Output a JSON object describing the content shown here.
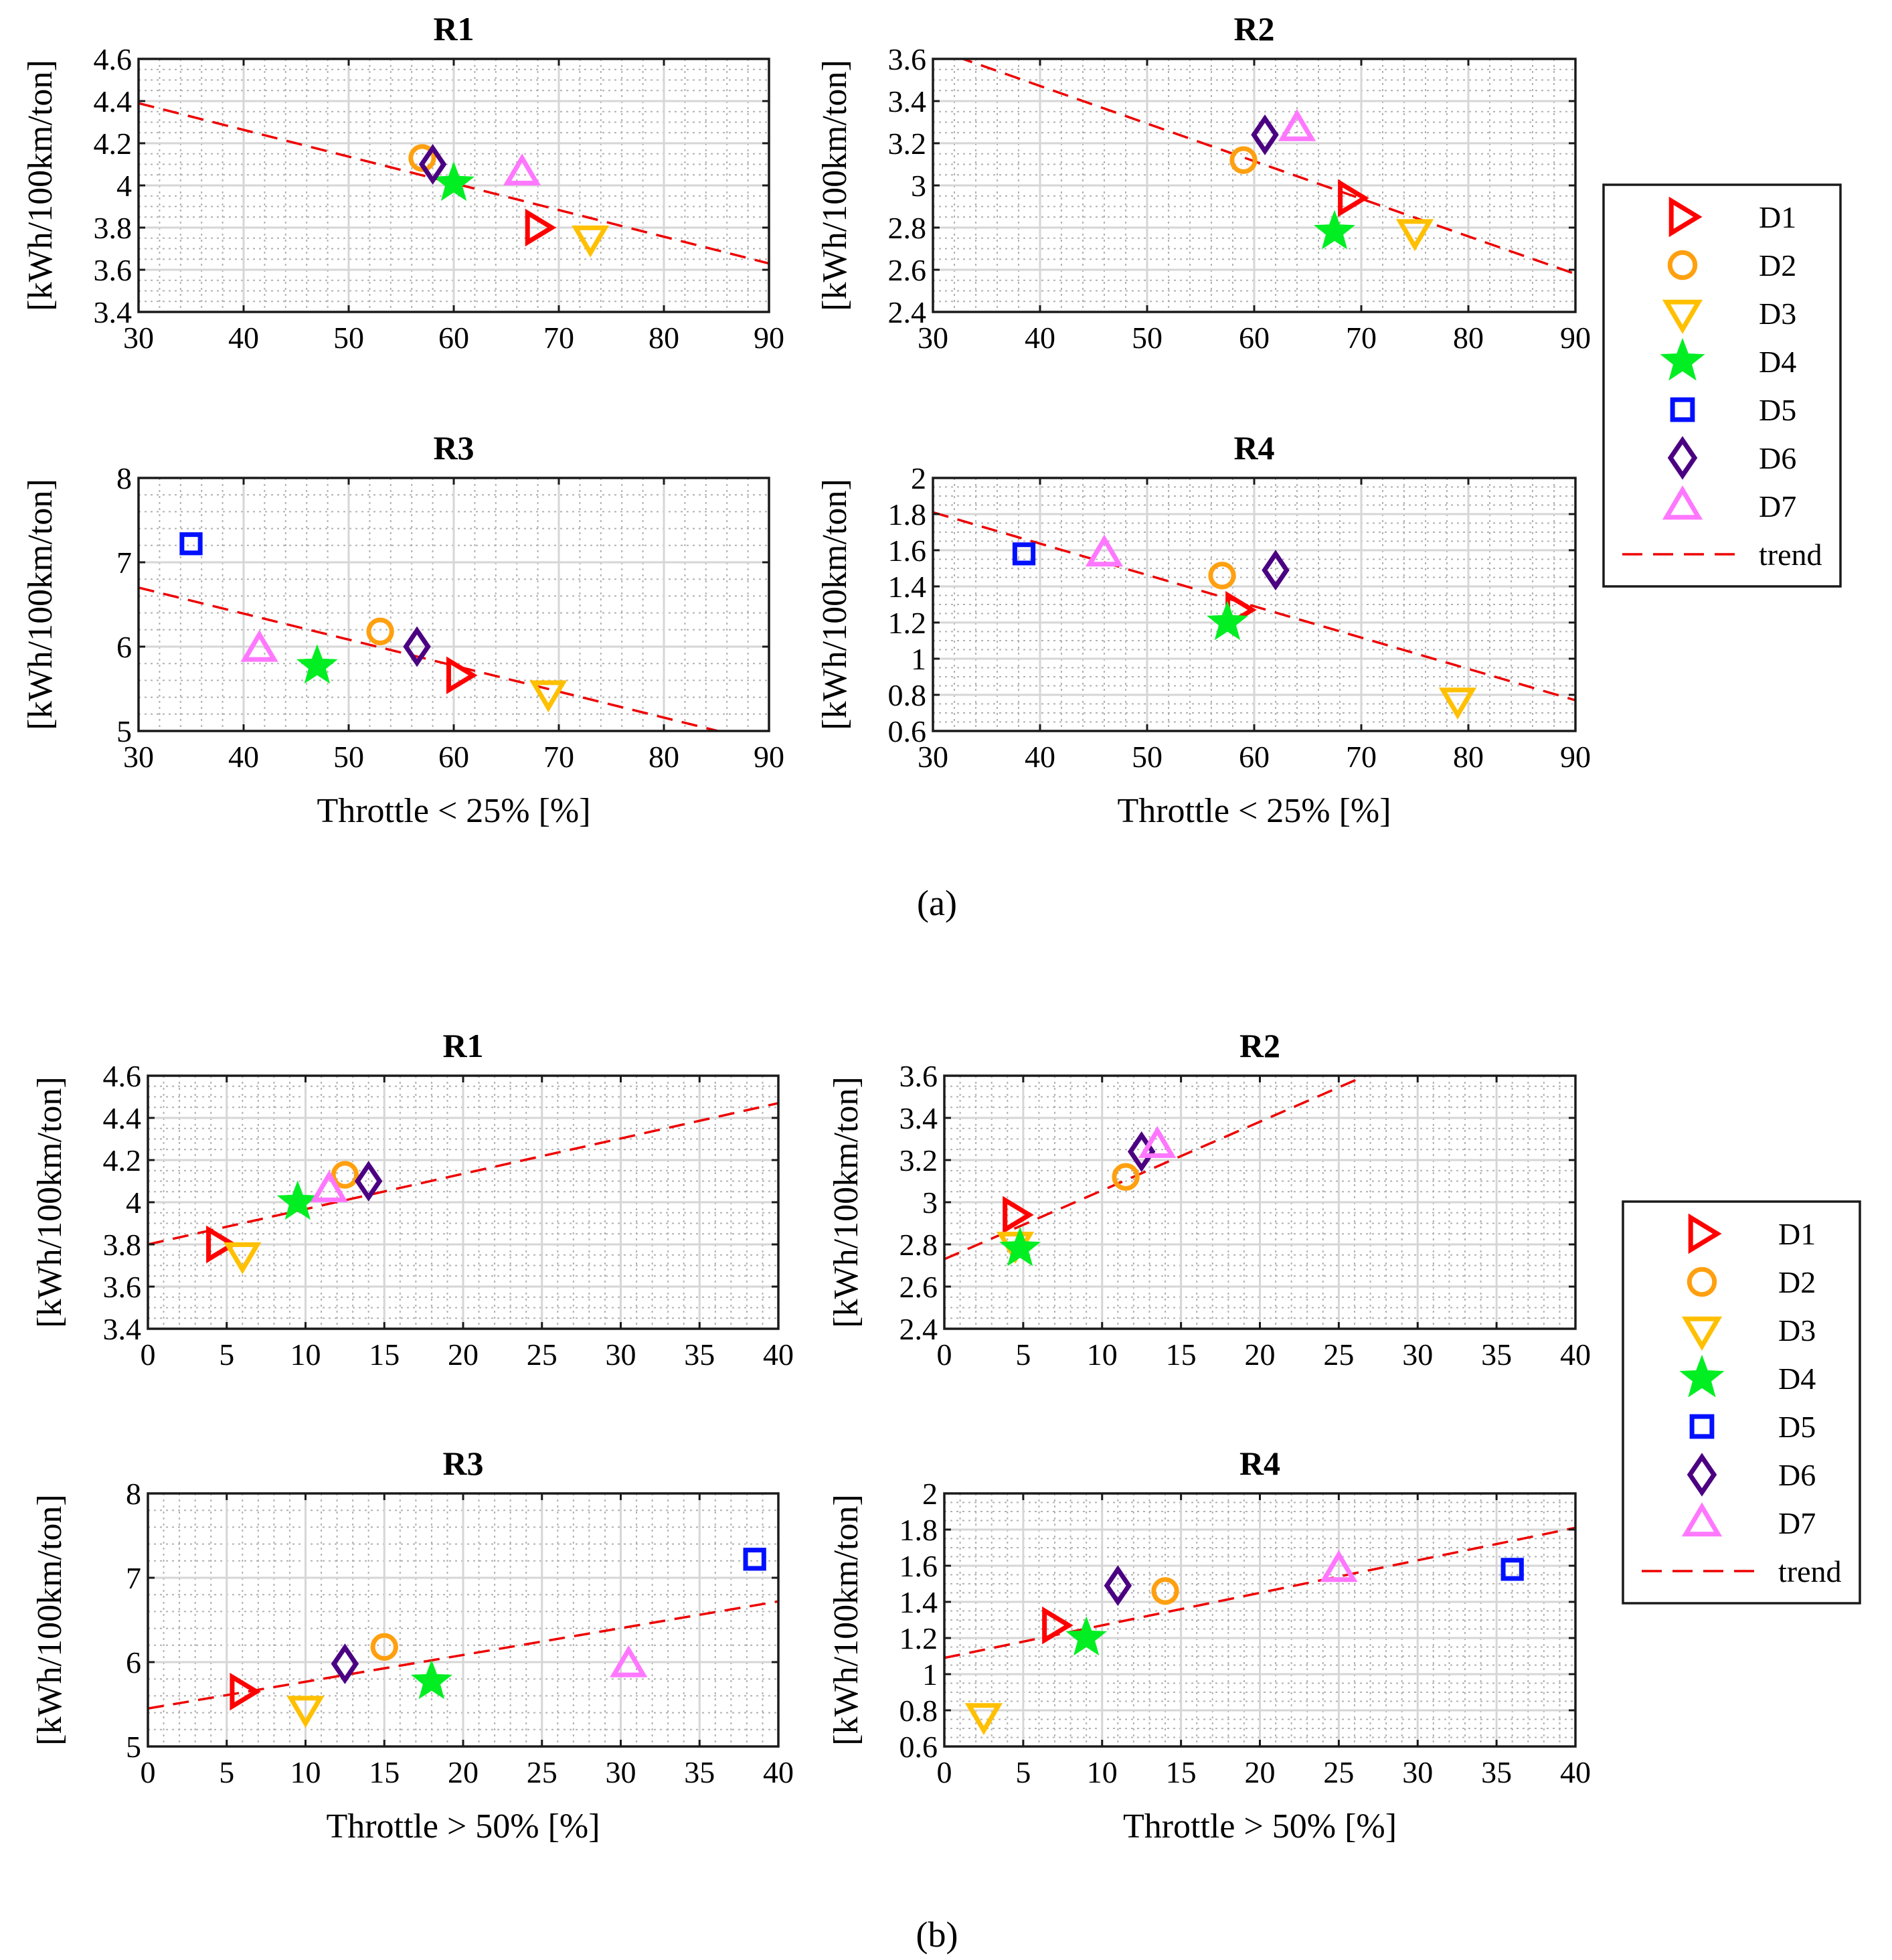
{
  "figure": {
    "panel_a_label": "(a)",
    "panel_b_label": "(b)",
    "y_label": "[kWh/100km/ton]",
    "x_label_a": "Throttle < 25% [%]",
    "x_label_b": "Throttle > 50% [%]"
  },
  "legend": {
    "entries": [
      {
        "label": "D1",
        "color": "#ff0000",
        "marker": "triangle-right"
      },
      {
        "label": "D2",
        "color": "#ffa010",
        "marker": "circle"
      },
      {
        "label": "D3",
        "color": "#ffc000",
        "marker": "triangle-down"
      },
      {
        "label": "D4",
        "color": "#00ee22",
        "marker": "star"
      },
      {
        "label": "D5",
        "color": "#0010ff",
        "marker": "square"
      },
      {
        "label": "D6",
        "color": "#4b0082",
        "marker": "diamond"
      },
      {
        "label": "D7",
        "color": "#ff77ff",
        "marker": "triangle-up"
      },
      {
        "label": "trend",
        "color": "#ee0000",
        "marker": "dashed-line"
      }
    ]
  },
  "chart_data": [
    {
      "id": "a-R1",
      "type": "scatter",
      "title": "R1",
      "xlabel": "",
      "ylabel": "[kWh/100km/ton]",
      "xlim": [
        30,
        90
      ],
      "ylim": [
        3.4,
        4.6
      ],
      "xticks": [
        "30",
        "40",
        "50",
        "60",
        "70",
        "80",
        "90"
      ],
      "yticks": [
        "3.4",
        "3.6",
        "3.8",
        "4",
        "4.2",
        "4.4",
        "4.6"
      ],
      "points": {
        "D1": [
          68,
          3.8
        ],
        "D2": [
          57,
          4.13
        ],
        "D3": [
          73,
          3.75
        ],
        "D4": [
          60,
          4.01
        ],
        "D6": [
          58,
          4.1
        ],
        "D7": [
          66.5,
          4.06
        ]
      },
      "trend": [
        [
          30,
          4.39
        ],
        [
          90,
          3.63
        ]
      ]
    },
    {
      "id": "a-R2",
      "type": "scatter",
      "title": "R2",
      "xlabel": "",
      "ylabel": "[kWh/100km/ton]",
      "xlim": [
        30,
        90
      ],
      "ylim": [
        2.4,
        3.6
      ],
      "xticks": [
        "30",
        "40",
        "50",
        "60",
        "70",
        "80",
        "90"
      ],
      "yticks": [
        "2.4",
        "2.6",
        "2.8",
        "3",
        "3.2",
        "3.4",
        "3.6"
      ],
      "points": {
        "D1": [
          69,
          2.94
        ],
        "D2": [
          59,
          3.12
        ],
        "D3": [
          75,
          2.78
        ],
        "D4": [
          67.5,
          2.78
        ],
        "D6": [
          61,
          3.24
        ],
        "D7": [
          64,
          3.27
        ]
      },
      "trend": [
        [
          30,
          3.65
        ],
        [
          90,
          2.58
        ]
      ]
    },
    {
      "id": "a-R3",
      "type": "scatter",
      "title": "R3",
      "xlabel": "Throttle < 25% [%]",
      "ylabel": "[kWh/100km/ton]",
      "xlim": [
        30,
        90
      ],
      "ylim": [
        5,
        8
      ],
      "xticks": [
        "30",
        "40",
        "50",
        "60",
        "70",
        "80",
        "90"
      ],
      "yticks": [
        "5",
        "6",
        "7",
        "8"
      ],
      "points": {
        "D1": [
          60.5,
          5.66
        ],
        "D2": [
          53,
          6.18
        ],
        "D3": [
          69,
          5.45
        ],
        "D4": [
          47,
          5.77
        ],
        "D5": [
          35,
          7.22
        ],
        "D6": [
          56.5,
          6.0
        ],
        "D7": [
          41.5,
          5.97
        ]
      },
      "trend": [
        [
          30,
          6.7
        ],
        [
          90,
          4.85
        ]
      ]
    },
    {
      "id": "a-R4",
      "type": "scatter",
      "title": "R4",
      "xlabel": "Throttle < 25% [%]",
      "ylabel": "[kWh/100km/ton]",
      "xlim": [
        30,
        90
      ],
      "ylim": [
        0.6,
        2
      ],
      "xticks": [
        "30",
        "40",
        "50",
        "60",
        "70",
        "80",
        "90"
      ],
      "yticks": [
        "0.6",
        "0.8",
        "1",
        "1.2",
        "1.4",
        "1.6",
        "1.8",
        "2"
      ],
      "points": {
        "D1": [
          58.5,
          1.27
        ],
        "D2": [
          57,
          1.46
        ],
        "D3": [
          79,
          0.77
        ],
        "D4": [
          57.5,
          1.2
        ],
        "D5": [
          38.5,
          1.58
        ],
        "D6": [
          62,
          1.49
        ],
        "D7": [
          46,
          1.58
        ]
      },
      "trend": [
        [
          30,
          1.81
        ],
        [
          90,
          0.77
        ]
      ]
    },
    {
      "id": "b-R1",
      "type": "scatter",
      "title": "R1",
      "xlabel": "",
      "ylabel": "[kWh/100km/ton]",
      "xlim": [
        0,
        40
      ],
      "ylim": [
        3.4,
        4.6
      ],
      "xticks": [
        "0",
        "5",
        "10",
        "15",
        "20",
        "25",
        "30",
        "35",
        "40"
      ],
      "yticks": [
        "3.4",
        "3.6",
        "3.8",
        "4",
        "4.2",
        "4.4",
        "4.6"
      ],
      "points": {
        "D1": [
          4.5,
          3.8
        ],
        "D2": [
          12.5,
          4.13
        ],
        "D3": [
          6,
          3.75
        ],
        "D4": [
          9.5,
          4.0
        ],
        "D6": [
          14,
          4.1
        ],
        "D7": [
          11.5,
          4.06
        ]
      },
      "trend": [
        [
          0,
          3.8
        ],
        [
          40,
          4.47
        ]
      ]
    },
    {
      "id": "b-R2",
      "type": "scatter",
      "title": "R2",
      "xlabel": "",
      "ylabel": "[kWh/100km/ton]",
      "xlim": [
        0,
        40
      ],
      "ylim": [
        2.4,
        3.6
      ],
      "xticks": [
        "0",
        "5",
        "10",
        "15",
        "20",
        "25",
        "30",
        "35",
        "40"
      ],
      "yticks": [
        "2.4",
        "2.6",
        "2.8",
        "3",
        "3.2",
        "3.4",
        "3.6"
      ],
      "points": {
        "D1": [
          4.5,
          2.94
        ],
        "D2": [
          11.5,
          3.12
        ],
        "D3": [
          4.5,
          2.8
        ],
        "D4": [
          4.8,
          2.78
        ],
        "D6": [
          12.5,
          3.24
        ],
        "D7": [
          13.5,
          3.27
        ]
      },
      "trend": [
        [
          0,
          2.73
        ],
        [
          27,
          3.61
        ]
      ]
    },
    {
      "id": "b-R3",
      "type": "scatter",
      "title": "R3",
      "xlabel": "Throttle > 50% [%]",
      "ylabel": "[kWh/100km/ton]",
      "xlim": [
        0,
        40
      ],
      "ylim": [
        5,
        8
      ],
      "xticks": [
        "0",
        "5",
        "10",
        "15",
        "20",
        "25",
        "30",
        "35",
        "40"
      ],
      "yticks": [
        "5",
        "6",
        "7",
        "8"
      ],
      "points": {
        "D1": [
          6,
          5.65
        ],
        "D2": [
          15,
          6.18
        ],
        "D3": [
          10,
          5.45
        ],
        "D4": [
          18,
          5.77
        ],
        "D5": [
          38.5,
          7.22
        ],
        "D6": [
          12.5,
          5.98
        ],
        "D7": [
          30.5,
          5.97
        ]
      },
      "trend": [
        [
          0,
          5.45
        ],
        [
          40,
          6.72
        ]
      ]
    },
    {
      "id": "b-R4",
      "type": "scatter",
      "title": "R4",
      "xlabel": "Throttle > 50% [%]",
      "ylabel": "[kWh/100km/ton]",
      "xlim": [
        0,
        40
      ],
      "ylim": [
        0.6,
        2
      ],
      "xticks": [
        "0",
        "5",
        "10",
        "15",
        "20",
        "25",
        "30",
        "35",
        "40"
      ],
      "yticks": [
        "0.6",
        "0.8",
        "1",
        "1.2",
        "1.4",
        "1.6",
        "1.8",
        "2"
      ],
      "points": {
        "D1": [
          7,
          1.27
        ],
        "D2": [
          14,
          1.46
        ],
        "D3": [
          2.5,
          0.77
        ],
        "D4": [
          9,
          1.2
        ],
        "D5": [
          36,
          1.58
        ],
        "D6": [
          11,
          1.49
        ],
        "D7": [
          25,
          1.58
        ]
      },
      "trend": [
        [
          0,
          1.09
        ],
        [
          40,
          1.81
        ]
      ]
    }
  ]
}
